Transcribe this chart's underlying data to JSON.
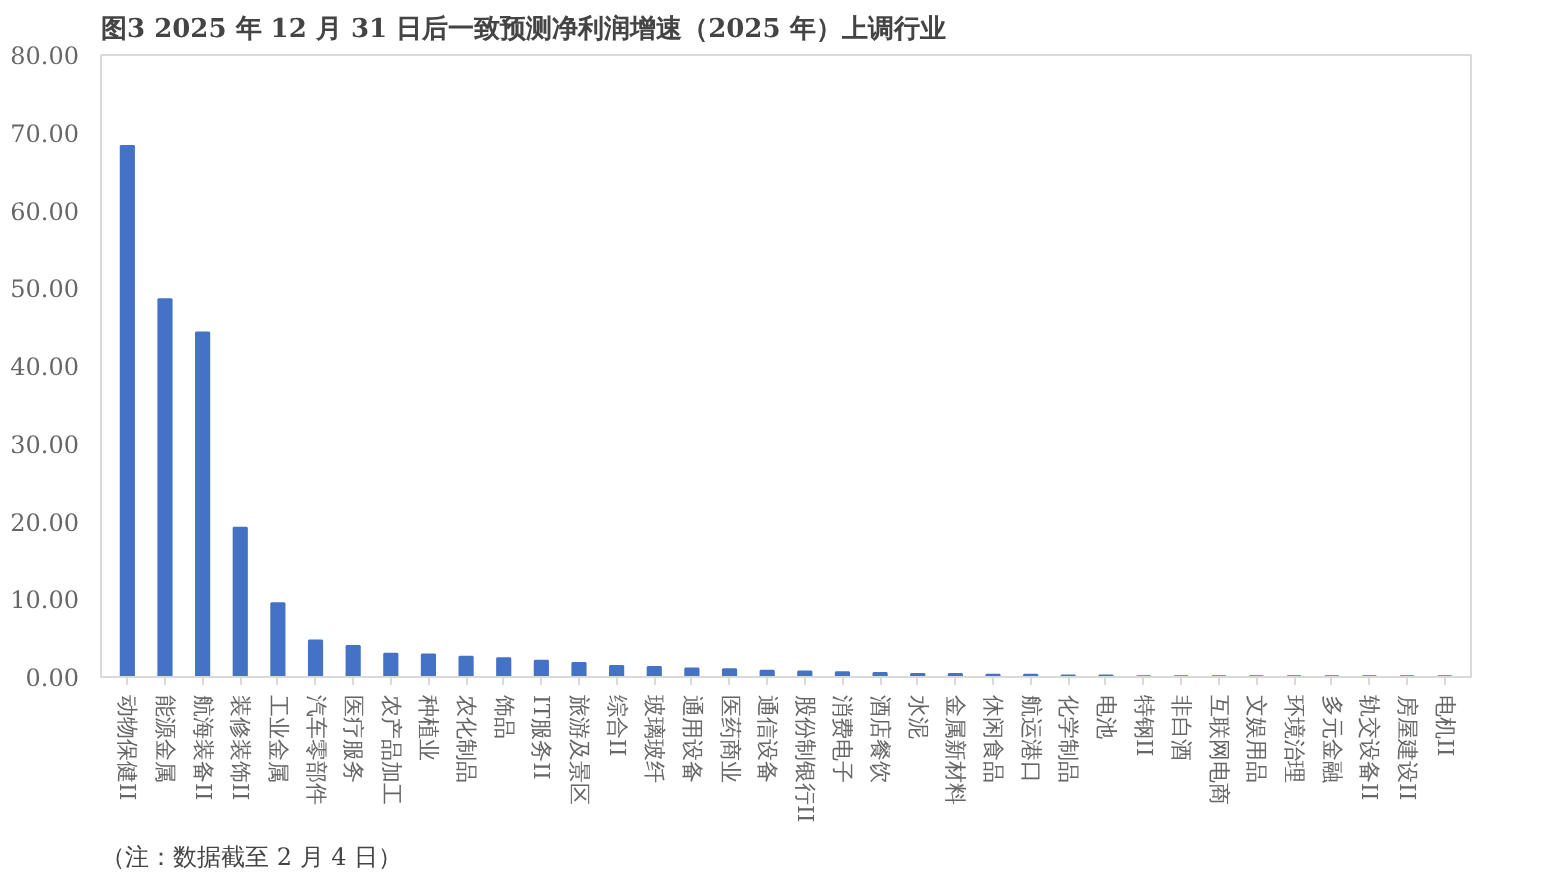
{
  "chart_data": {
    "type": "bar",
    "title": "图3  2025 年 12 月 31 日后一致预测净利润增速（2025 年）上调行业",
    "categories": [
      "动物保健II",
      "能源金属",
      "航海装备II",
      "装修装饰II",
      "工业金属",
      "汽车零部件",
      "医疗服务",
      "农产品加工",
      "种植业",
      "农化制品",
      "饰品",
      "IT服务II",
      "旅游及景区",
      "综合II",
      "玻璃玻纤",
      "通用设备",
      "医药商业",
      "通信设备",
      "股份制银行II",
      "消费电子",
      "酒店餐饮",
      "水泥",
      "金属新材料",
      "休闲食品",
      "航运港口",
      "化学制品",
      "电池",
      "特钢II",
      "非白酒",
      "互联网电商",
      "文娱用品",
      "环境治理",
      "多元金融",
      "轨交设备II",
      "房屋建设II",
      "电机II"
    ],
    "values": [
      68.3,
      48.6,
      44.3,
      19.2,
      9.5,
      4.7,
      4.0,
      3.0,
      2.9,
      2.6,
      2.4,
      2.1,
      1.8,
      1.4,
      1.3,
      1.1,
      1.0,
      0.8,
      0.7,
      0.6,
      0.5,
      0.4,
      0.4,
      0.3,
      0.3,
      0.2,
      0.2,
      0.1,
      0.1,
      0.1,
      0.1,
      0.1,
      0.1,
      0.1,
      0.1,
      0.1
    ],
    "color": "#4472c4",
    "ylim": [
      0,
      80
    ],
    "yticks": [
      {
        "value": 0,
        "label": "0.00"
      },
      {
        "value": 10,
        "label": "10.00"
      },
      {
        "value": 20,
        "label": "20.00"
      },
      {
        "value": 30,
        "label": "30.00"
      },
      {
        "value": 40,
        "label": "40.00"
      },
      {
        "value": 50,
        "label": "50.00"
      },
      {
        "value": 60,
        "label": "60.00"
      },
      {
        "value": 70,
        "label": "70.00"
      },
      {
        "value": 80,
        "label": "80.00"
      }
    ],
    "annotations": [
      "（注：数据截至 2 月 4 日）"
    ]
  }
}
